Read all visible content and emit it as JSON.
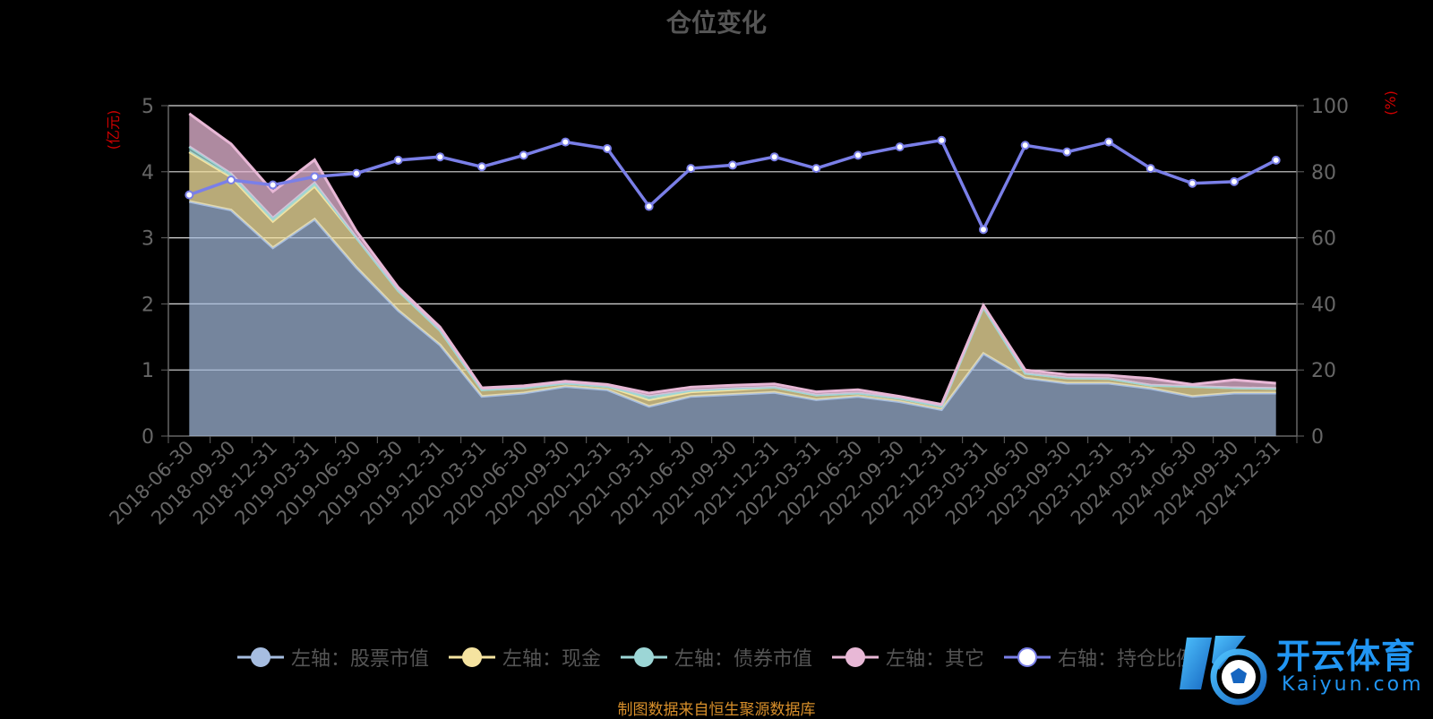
{
  "title": "仓位变化",
  "source_note": "制图数据来自恒生聚源数据库",
  "watermark": {
    "name": "开云体育",
    "domain": "Kaiyun.com"
  },
  "chart_data": {
    "type": "area",
    "x": [
      "2018-06-30",
      "2018-09-30",
      "2018-12-31",
      "2019-03-31",
      "2019-06-30",
      "2019-09-30",
      "2019-12-31",
      "2020-03-31",
      "2020-06-30",
      "2020-09-30",
      "2020-12-31",
      "2021-03-31",
      "2021-06-30",
      "2021-09-30",
      "2021-12-31",
      "2022-03-31",
      "2022-06-30",
      "2022-09-30",
      "2022-12-31",
      "2023-03-31",
      "2023-06-30",
      "2023-09-30",
      "2023-12-31",
      "2024-03-31",
      "2024-06-30",
      "2024-09-30",
      "2024-12-31"
    ],
    "left_axis": {
      "unit": "(亿元)",
      "ylim": [
        0,
        5
      ],
      "ticks": [
        "0",
        "1",
        "2",
        "3",
        "4",
        "5"
      ]
    },
    "right_axis": {
      "unit": "(%)",
      "ylim": [
        0,
        100
      ],
      "ticks": [
        "0",
        "20",
        "40",
        "60",
        "80",
        "100"
      ]
    },
    "series": [
      {
        "name": "左轴：股票市值",
        "axis": "left",
        "kind": "area",
        "color": "#a6bde0",
        "values": [
          3.55,
          3.42,
          2.85,
          3.28,
          2.55,
          1.9,
          1.38,
          0.6,
          0.65,
          0.75,
          0.7,
          0.45,
          0.6,
          0.63,
          0.66,
          0.55,
          0.6,
          0.52,
          0.4,
          1.25,
          0.88,
          0.8,
          0.8,
          0.72,
          0.6,
          0.65,
          0.65
        ]
      },
      {
        "name": "左轴：现金",
        "axis": "left",
        "kind": "area",
        "color": "#f5e3a0",
        "values": [
          0.75,
          0.5,
          0.4,
          0.5,
          0.45,
          0.3,
          0.22,
          0.1,
          0.08,
          0.05,
          0.05,
          0.1,
          0.07,
          0.07,
          0.08,
          0.07,
          0.05,
          0.05,
          0.05,
          0.7,
          0.07,
          0.08,
          0.07,
          0.05,
          0.15,
          0.08,
          0.07
        ]
      },
      {
        "name": "左轴：债券市值",
        "axis": "left",
        "kind": "area",
        "color": "#9cd6d6",
        "values": [
          0.08,
          0.05,
          0.05,
          0.05,
          0.0,
          0.0,
          0.0,
          0.0,
          0.0,
          0.0,
          0.0,
          0.05,
          0.02,
          0.02,
          0.0,
          0.0,
          0.0,
          0.0,
          0.0,
          0.0,
          0.0,
          0.0,
          0.0,
          0.0,
          0.0,
          0.0,
          0.0
        ]
      },
      {
        "name": "左轴：其它",
        "axis": "left",
        "kind": "area",
        "color": "#e8b8d6",
        "values": [
          0.5,
          0.45,
          0.4,
          0.35,
          0.1,
          0.05,
          0.05,
          0.03,
          0.03,
          0.03,
          0.03,
          0.05,
          0.05,
          0.05,
          0.05,
          0.05,
          0.05,
          0.03,
          0.03,
          0.03,
          0.05,
          0.05,
          0.05,
          0.1,
          0.03,
          0.12,
          0.08
        ]
      },
      {
        "name": "右轴：持仓比例",
        "axis": "right",
        "kind": "line",
        "color": "#7a7fe8",
        "values": [
          73.0,
          77.5,
          76.0,
          78.5,
          79.5,
          83.5,
          84.5,
          81.5,
          85.0,
          89.0,
          87.0,
          69.5,
          81.0,
          82.0,
          84.5,
          81.0,
          85.0,
          87.5,
          89.5,
          62.5,
          88.0,
          86.0,
          89.0,
          81.0,
          76.5,
          77.0,
          83.5
        ]
      }
    ]
  }
}
